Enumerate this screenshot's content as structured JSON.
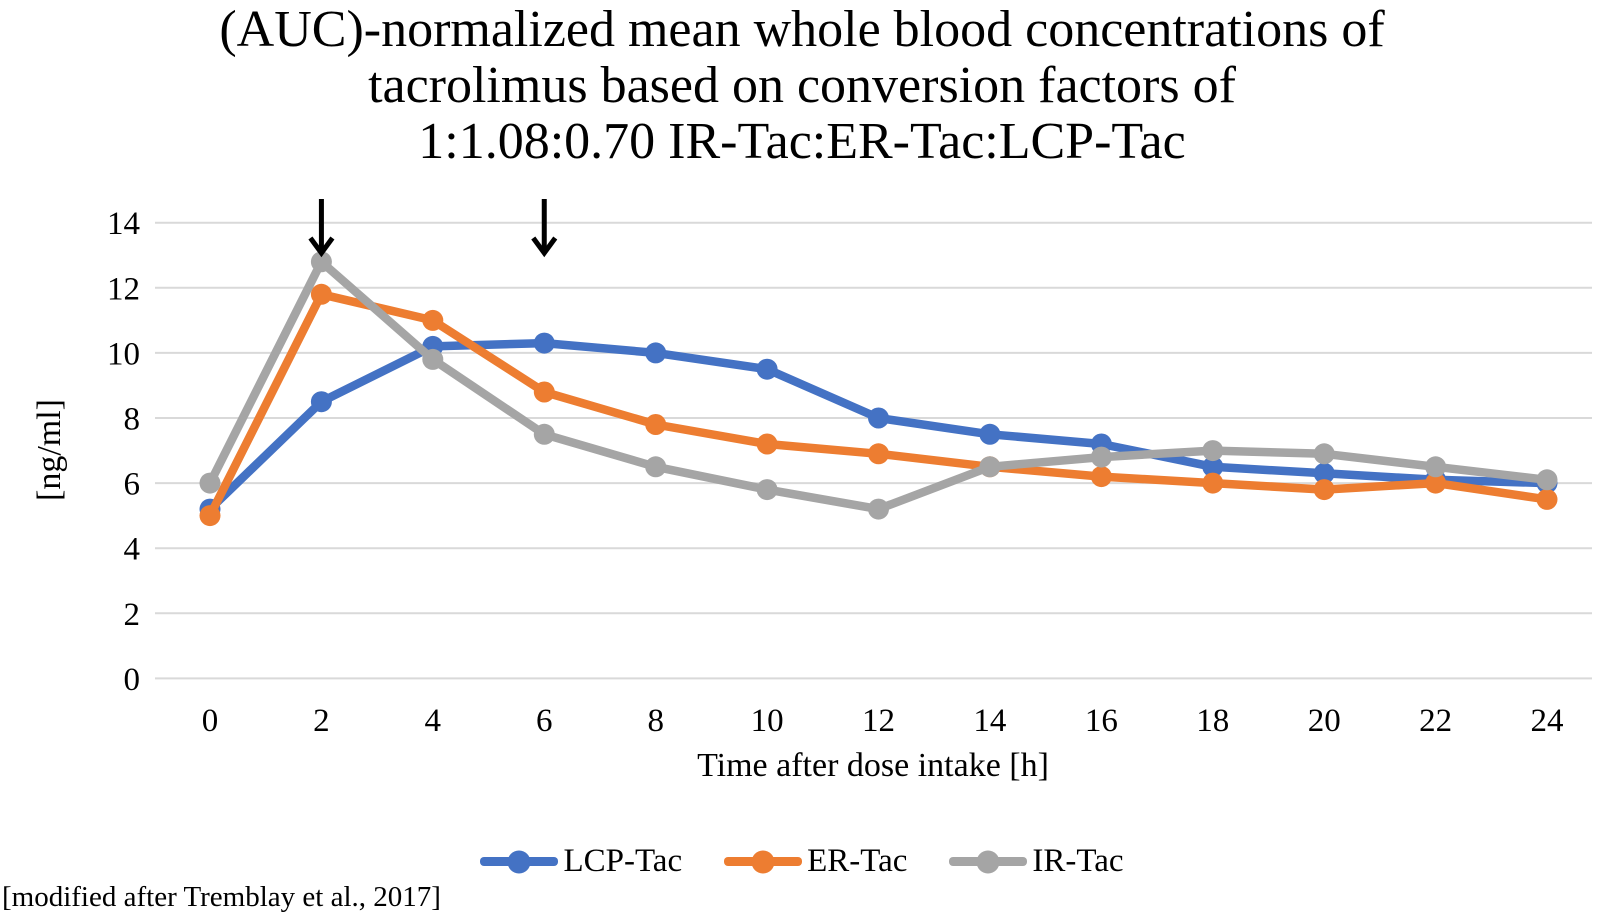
{
  "footer_note": "[modified after Tremblay et al., 2017]",
  "chart_data": {
    "type": "line",
    "title": "(AUC)-normalized mean whole blood concentrations of tacrolimus based on conversion factors of 1:1.08:0.70 IR-Tac:ER-Tac:LCP-Tac",
    "title_lines": [
      "(AUC)-normalized mean whole blood concentrations of",
      "tacrolimus based on conversion factors of",
      "1:1.08:0.70 IR-Tac:ER-Tac:LCP-Tac"
    ],
    "xlabel": "Time after dose intake [h]",
    "ylabel": "[ng/ml]",
    "x": [
      0,
      2,
      4,
      6,
      8,
      10,
      12,
      14,
      16,
      18,
      20,
      22,
      24
    ],
    "yticks": [
      0,
      2,
      4,
      6,
      8,
      10,
      12,
      14
    ],
    "ylim": [
      0,
      14
    ],
    "grid": "horizontal",
    "gridline_color": "#D9D9D9",
    "text_color": "#000000",
    "legend_position": "bottom",
    "series": [
      {
        "name": "LCP-Tac",
        "color": "#4472C4",
        "values": [
          5.2,
          8.5,
          10.2,
          10.3,
          10.0,
          9.5,
          8.0,
          7.5,
          7.2,
          6.5,
          6.3,
          6.1,
          6.0
        ]
      },
      {
        "name": "ER-Tac",
        "color": "#ED7D31",
        "values": [
          5.0,
          11.8,
          11.0,
          8.8,
          7.8,
          7.2,
          6.9,
          6.5,
          6.2,
          6.0,
          5.8,
          6.0,
          5.5
        ]
      },
      {
        "name": "IR-Tac",
        "color": "#A5A5A5",
        "values": [
          6.0,
          12.8,
          9.8,
          7.5,
          6.5,
          5.8,
          5.2,
          6.5,
          6.8,
          7.0,
          6.9,
          6.5,
          6.1
        ]
      }
    ],
    "annotations": [
      {
        "type": "down-arrow",
        "x": 2
      },
      {
        "type": "down-arrow",
        "x": 6
      }
    ]
  }
}
